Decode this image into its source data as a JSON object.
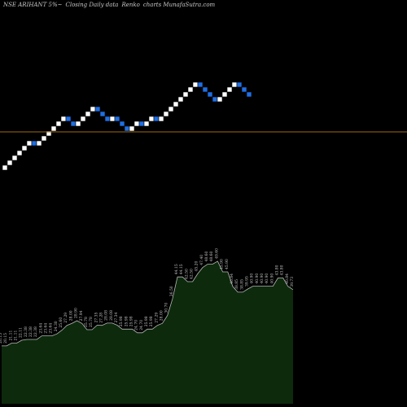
{
  "header": {
    "symbol": "NSE ARIHANT 5%~",
    "chart_label": "Closing Daily data",
    "chart_kind": "Renko",
    "site": "charts MunafaSutra.com"
  },
  "chart_data": [
    {
      "type": "renko",
      "title": "NSE ARIHANT 5%~ Closing Daily data Renko charts MunafaSutra.com",
      "bricks": [
        "up",
        "up",
        "up",
        "up",
        "up",
        "up",
        "down",
        "up",
        "up",
        "up",
        "up",
        "up",
        "up",
        "down",
        "down",
        "up",
        "up",
        "up",
        "up",
        "down",
        "down",
        "down",
        "up",
        "down",
        "down",
        "down",
        "up",
        "up",
        "down",
        "up",
        "up",
        "down",
        "up",
        "up",
        "up",
        "up",
        "up",
        "up",
        "up",
        "up",
        "down",
        "down",
        "down",
        "down",
        "up",
        "up",
        "up",
        "up",
        "down",
        "down",
        "down"
      ],
      "reference_line": "present",
      "colors": {
        "up": "#ffffff",
        "down": "#1f6fe5",
        "reference_line": "#a06a10",
        "background": "#000000"
      }
    },
    {
      "type": "area",
      "labels": [
        "20.15",
        "20.15",
        "21.11",
        "21.11",
        "22.11",
        "22.38",
        "22.38",
        "22.38",
        "23.64",
        "23.64",
        "23.64",
        "24.30",
        "25.60",
        "27.29",
        "28.00",
        "28.90",
        "27.94",
        "25.78",
        "25.78",
        "27.35",
        "27.28",
        "28.08",
        "28.08",
        "27.34",
        "25.98",
        "25.98",
        "25.98",
        "24.70",
        "24.70",
        "25.98",
        "25.98",
        "27.29",
        "28.00",
        "30.70",
        "36.50",
        "44.15",
        "44.15",
        "42.50",
        "42.50",
        "45.20",
        "47.40",
        "48.60",
        "48.60",
        "49.60",
        "45.90",
        "45.90",
        "40.84",
        "38.85",
        "38.85",
        "39.95",
        "40.90",
        "40.90",
        "40.90",
        "40.90",
        "40.90",
        "43.80",
        "43.80",
        "40.84",
        "39.73"
      ],
      "values": [
        20.15,
        20.15,
        21.11,
        21.11,
        22.11,
        22.38,
        22.38,
        22.38,
        23.64,
        23.64,
        23.64,
        24.3,
        25.6,
        27.29,
        28.0,
        28.9,
        27.94,
        25.78,
        25.78,
        27.35,
        27.28,
        28.08,
        28.08,
        27.34,
        25.98,
        25.98,
        25.98,
        24.7,
        24.7,
        25.98,
        25.98,
        27.29,
        28.0,
        30.7,
        36.5,
        44.15,
        44.15,
        42.5,
        42.5,
        45.2,
        47.4,
        48.6,
        48.6,
        49.6,
        45.9,
        45.9,
        40.84,
        38.85,
        38.85,
        39.95,
        40.9,
        40.9,
        40.9,
        40.9,
        40.9,
        43.8,
        43.8,
        40.84,
        39.73
      ],
      "colors": {
        "fill": "#0d2a0d",
        "line": "#b8b8b8",
        "labels": "#c8c8c8"
      }
    }
  ]
}
